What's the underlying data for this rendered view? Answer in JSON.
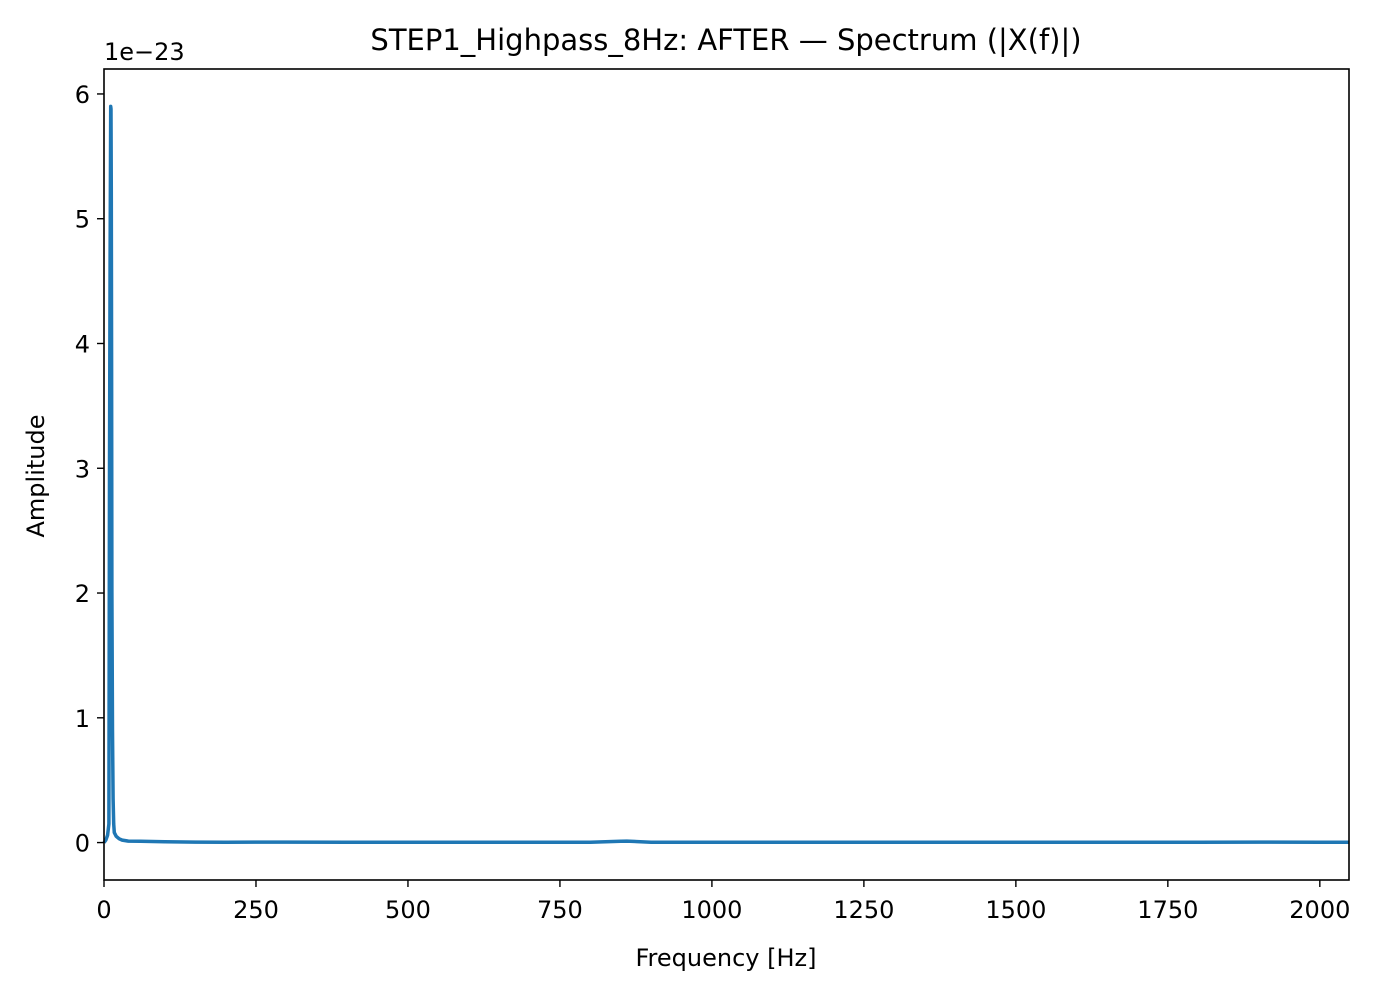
{
  "chart_data": {
    "type": "line",
    "title": "STEP1_Highpass_8Hz: AFTER — Spectrum (|X(f)|)",
    "xlabel": "Frequency [Hz]",
    "ylabel": "Amplitude",
    "offset_text": "1e−23",
    "xlim": [
      0,
      2048
    ],
    "ylim": [
      -0.3,
      6.2
    ],
    "y_scale_factor": 1e-23,
    "xticks": [
      0,
      250,
      500,
      750,
      1000,
      1250,
      1500,
      1750,
      2000
    ],
    "yticks": [
      0,
      1,
      2,
      3,
      4,
      5,
      6
    ],
    "grid": false,
    "line_color": "#1f77b4",
    "series": [
      {
        "x": [
          0,
          3,
          6,
          8,
          9,
          10,
          11,
          11.5,
          12,
          12.5,
          13,
          14,
          15,
          16,
          17,
          20,
          25,
          30,
          40,
          60,
          100,
          150,
          200,
          300,
          400,
          500,
          600,
          700,
          800,
          850,
          860,
          900,
          1000,
          1200,
          1400,
          1600,
          1800,
          1900,
          2000,
          2048
        ],
        "y": [
          0,
          0.02,
          0.06,
          0.15,
          3.0,
          4.7,
          5.9,
          5.88,
          5.2,
          3.8,
          2.0,
          0.9,
          0.35,
          0.15,
          0.08,
          0.05,
          0.03,
          0.02,
          0.012,
          0.01,
          0.006,
          0.004,
          0.003,
          0.004,
          0.003,
          0.002,
          0.002,
          0.002,
          0.003,
          0.01,
          0.012,
          0.003,
          0.002,
          0.002,
          0.002,
          0.002,
          0.003,
          0.004,
          0.003,
          0.002
        ]
      }
    ]
  }
}
